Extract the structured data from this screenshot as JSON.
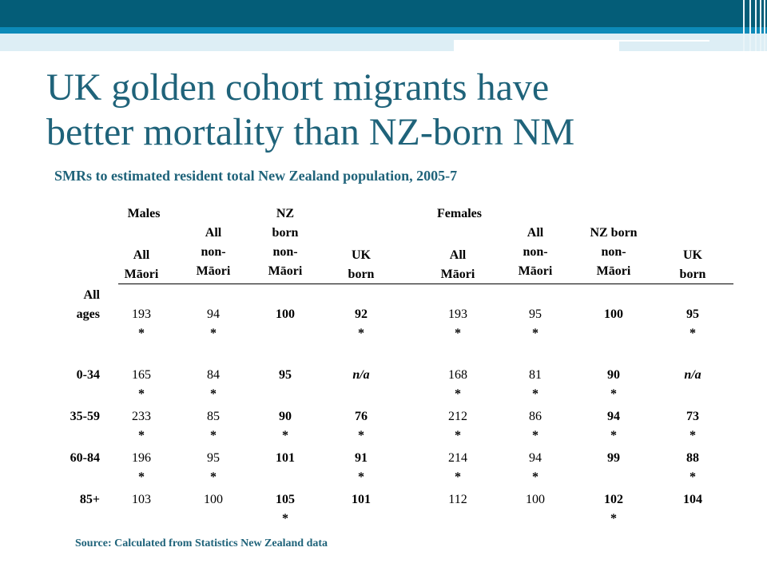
{
  "slide": {
    "title_line1": "UK golden cohort migrants have",
    "title_line2": "better mortality than NZ-born NM",
    "subtitle": "SMRs to estimated resident total New Zealand population, 2005-7",
    "source": "Source: Calculated from Statistics New Zealand data"
  },
  "colors": {
    "accent": "#1f637a",
    "bar_dark": "#045d78",
    "bar_mid": "#0c8ab8",
    "bar_light": "#ddeef5"
  },
  "table": {
    "group_males": "Males",
    "group_females": "Females",
    "headers": [
      [
        "All",
        "Māori"
      ],
      [
        "All",
        "non-",
        "Māori"
      ],
      [
        "NZ",
        "born",
        "non-",
        "Māori"
      ],
      [
        "UK",
        "born"
      ],
      [
        "All",
        "Māori"
      ],
      [
        "All",
        "non-",
        "Māori"
      ],
      [
        "NZ born",
        "non-",
        "Māori"
      ],
      [
        "UK",
        "born"
      ]
    ],
    "rows": [
      {
        "label": [
          "All",
          "ages"
        ],
        "cells": [
          [
            "193",
            "*"
          ],
          [
            "94",
            "*"
          ],
          [
            "100",
            ""
          ],
          [
            "92",
            "*"
          ],
          [
            "193",
            "*"
          ],
          [
            "95",
            "*"
          ],
          [
            "100",
            ""
          ],
          [
            "95",
            "*"
          ]
        ]
      },
      {
        "label": [
          "0-34"
        ],
        "cells": [
          [
            "165",
            "*"
          ],
          [
            "84",
            "*"
          ],
          [
            "95",
            ""
          ],
          [
            "n/a",
            ""
          ],
          [
            "168",
            "*"
          ],
          [
            "81",
            "*"
          ],
          [
            "90",
            "*"
          ],
          [
            "n/a",
            ""
          ]
        ]
      },
      {
        "label": [
          "35-59"
        ],
        "cells": [
          [
            "233",
            "*"
          ],
          [
            "85",
            "*"
          ],
          [
            "90",
            "*"
          ],
          [
            "76",
            "*"
          ],
          [
            "212",
            "*"
          ],
          [
            "86",
            "*"
          ],
          [
            "94",
            "*"
          ],
          [
            "73",
            "*"
          ]
        ]
      },
      {
        "label": [
          "60-84"
        ],
        "cells": [
          [
            "196",
            "*"
          ],
          [
            "95",
            "*"
          ],
          [
            "101",
            ""
          ],
          [
            "91",
            "*"
          ],
          [
            "214",
            "*"
          ],
          [
            "94",
            "*"
          ],
          [
            "99",
            ""
          ],
          [
            "88",
            "*"
          ]
        ]
      },
      {
        "label": [
          "85+"
        ],
        "cells": [
          [
            "103",
            ""
          ],
          [
            "100",
            ""
          ],
          [
            "105",
            "*"
          ],
          [
            "101",
            ""
          ],
          [
            "112",
            ""
          ],
          [
            "100",
            ""
          ],
          [
            "102",
            "*"
          ],
          [
            "104",
            ""
          ]
        ]
      }
    ]
  }
}
